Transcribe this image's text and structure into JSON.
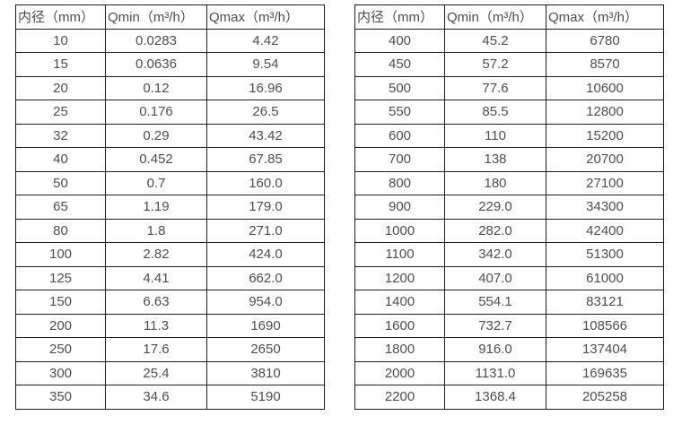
{
  "colors": {
    "border": "#1d1d1d",
    "text": "#4d4d4d",
    "background": "#ffffff"
  },
  "tables": [
    {
      "id": "left",
      "headers": [
        "内径（mm）",
        "Qmin（m³/h）",
        "Qmax（m³/h）"
      ],
      "rows": [
        [
          "10",
          "0.0283",
          "4.42"
        ],
        [
          "15",
          "0.0636",
          "9.54"
        ],
        [
          "20",
          "0.12",
          "16.96"
        ],
        [
          "25",
          "0.176",
          "26.5"
        ],
        [
          "32",
          "0.29",
          "43.42"
        ],
        [
          "40",
          "0.452",
          "67.85"
        ],
        [
          "50",
          "0.7",
          "160.0"
        ],
        [
          "65",
          "1.19",
          "179.0"
        ],
        [
          "80",
          "1.8",
          "271.0"
        ],
        [
          "100",
          "2.82",
          "424.0"
        ],
        [
          "125",
          "4.41",
          "662.0"
        ],
        [
          "150",
          "6.63",
          "954.0"
        ],
        [
          "200",
          "11.3",
          "1690"
        ],
        [
          "250",
          "17.6",
          "2650"
        ],
        [
          "300",
          "25.4",
          "3810"
        ],
        [
          "350",
          "34.6",
          "5190"
        ]
      ]
    },
    {
      "id": "right",
      "headers": [
        "内径（mm）",
        "Qmin（m³/h）",
        "Qmax（m³/h）"
      ],
      "rows": [
        [
          "400",
          "45.2",
          "6780"
        ],
        [
          "450",
          "57.2",
          "8570"
        ],
        [
          "500",
          "77.6",
          "10600"
        ],
        [
          "550",
          "85.5",
          "12800"
        ],
        [
          "600",
          "110",
          "15200"
        ],
        [
          "700",
          "138",
          "20700"
        ],
        [
          "800",
          "180",
          "27100"
        ],
        [
          "900",
          "229.0",
          "34300"
        ],
        [
          "1000",
          "282.0",
          "42400"
        ],
        [
          "1100",
          "342.0",
          "51300"
        ],
        [
          "1200",
          "407.0",
          "61000"
        ],
        [
          "1400",
          "554.1",
          "83121"
        ],
        [
          "1600",
          "732.7",
          "108566"
        ],
        [
          "1800",
          "916.0",
          "137404"
        ],
        [
          "2000",
          "1131.0",
          "169635"
        ],
        [
          "2200",
          "1368.4",
          "205258"
        ]
      ]
    }
  ]
}
